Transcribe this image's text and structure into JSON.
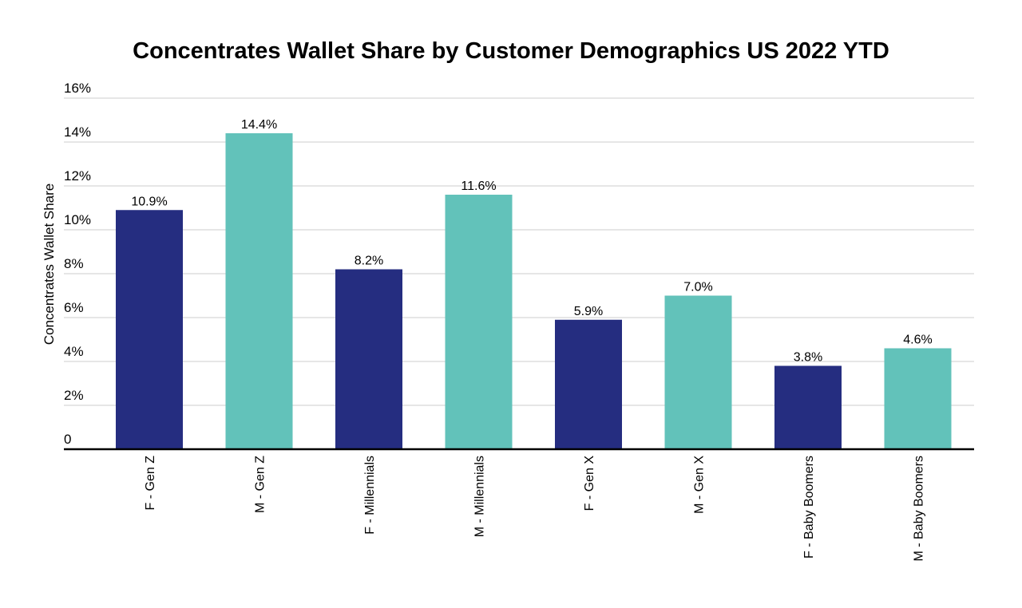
{
  "chart_data": {
    "type": "bar",
    "title": "Concentrates Wallet Share by Customer Demographics US 2022 YTD",
    "xlabel": "",
    "ylabel": "Concentrates Wallet Share",
    "ylim": [
      0,
      16
    ],
    "yticks": [
      0,
      2,
      4,
      6,
      8,
      10,
      12,
      14,
      16
    ],
    "ytick_labels": [
      "0",
      "2%",
      "4%",
      "6%",
      "8%",
      "10%",
      "12%",
      "14%",
      "16%"
    ],
    "categories": [
      "F - Gen Z",
      "M - Gen Z",
      "F - Millennials",
      "M - Millennials",
      "F - Gen X",
      "M - Gen X",
      "F - Baby Boomers",
      "M - Baby Boomers"
    ],
    "values": [
      10.9,
      14.4,
      8.2,
      11.6,
      5.9,
      7.0,
      3.8,
      4.6
    ],
    "data_labels": [
      "10.9%",
      "14.4%",
      "8.2%",
      "11.6%",
      "5.9%",
      "7.0%",
      "3.8%",
      "4.6%"
    ],
    "bar_colors": [
      "#252D80",
      "#62C2BA",
      "#252D80",
      "#62C2BA",
      "#252D80",
      "#62C2BA",
      "#252D80",
      "#62C2BA"
    ],
    "grid": true,
    "legend": "none"
  }
}
